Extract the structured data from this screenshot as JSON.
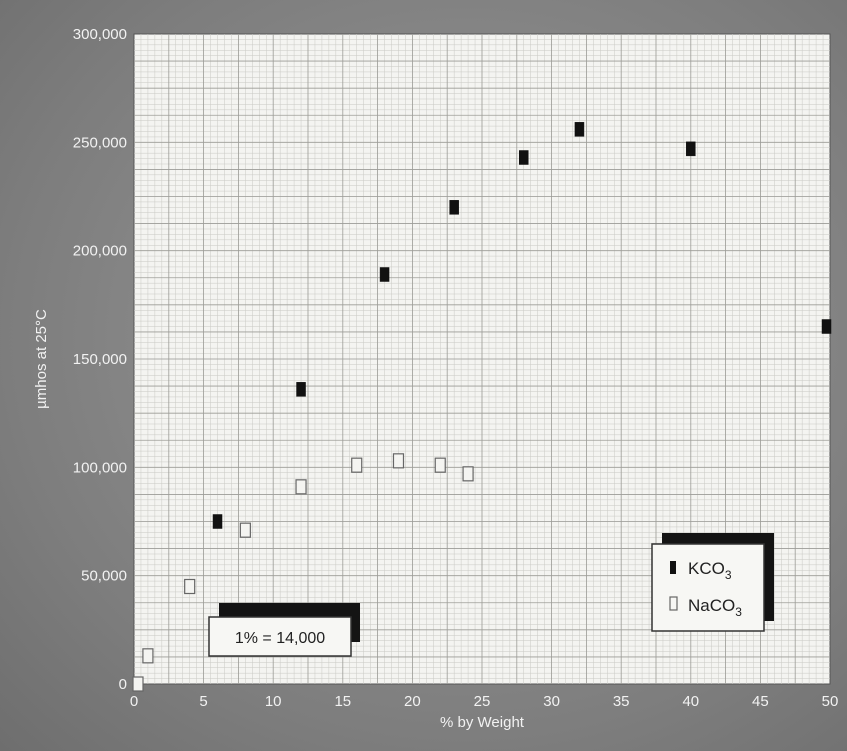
{
  "chart_data": {
    "type": "scatter",
    "title": "",
    "xlabel": "% by Weight",
    "ylabel": "µmhos at 25°C",
    "xlim": [
      0,
      50
    ],
    "ylim": [
      0,
      300000
    ],
    "x_ticks": [
      "0",
      "5",
      "10",
      "15",
      "20",
      "25",
      "30",
      "35",
      "40",
      "45",
      "50"
    ],
    "y_ticks": [
      "0",
      "50,000",
      "100,000",
      "150,000",
      "200,000",
      "250,000",
      "300,000"
    ],
    "grid": true,
    "legend_position": "bottom-right",
    "series": [
      {
        "name": "KCO3",
        "legend_base": "KCO",
        "legend_sub": "3",
        "marker": "filled-square",
        "color": "#111111",
        "points": [
          {
            "x": 6,
            "y": 75000
          },
          {
            "x": 12,
            "y": 136000
          },
          {
            "x": 18,
            "y": 189000
          },
          {
            "x": 23,
            "y": 220000
          },
          {
            "x": 28,
            "y": 243000
          },
          {
            "x": 32,
            "y": 256000
          },
          {
            "x": 40,
            "y": 247000
          },
          {
            "x": 50,
            "y": 165000
          }
        ]
      },
      {
        "name": "NaCO3",
        "legend_base": "NaCO",
        "legend_sub": "3",
        "marker": "open-square",
        "color": "#666666",
        "points": [
          {
            "x": 0,
            "y": 0
          },
          {
            "x": 1,
            "y": 13000
          },
          {
            "x": 4,
            "y": 45000
          },
          {
            "x": 8,
            "y": 71000
          },
          {
            "x": 12,
            "y": 91000
          },
          {
            "x": 16,
            "y": 101000
          },
          {
            "x": 19,
            "y": 103000
          },
          {
            "x": 22,
            "y": 101000
          },
          {
            "x": 24,
            "y": 97000
          }
        ]
      }
    ],
    "annotation": "1% = 14,000"
  }
}
